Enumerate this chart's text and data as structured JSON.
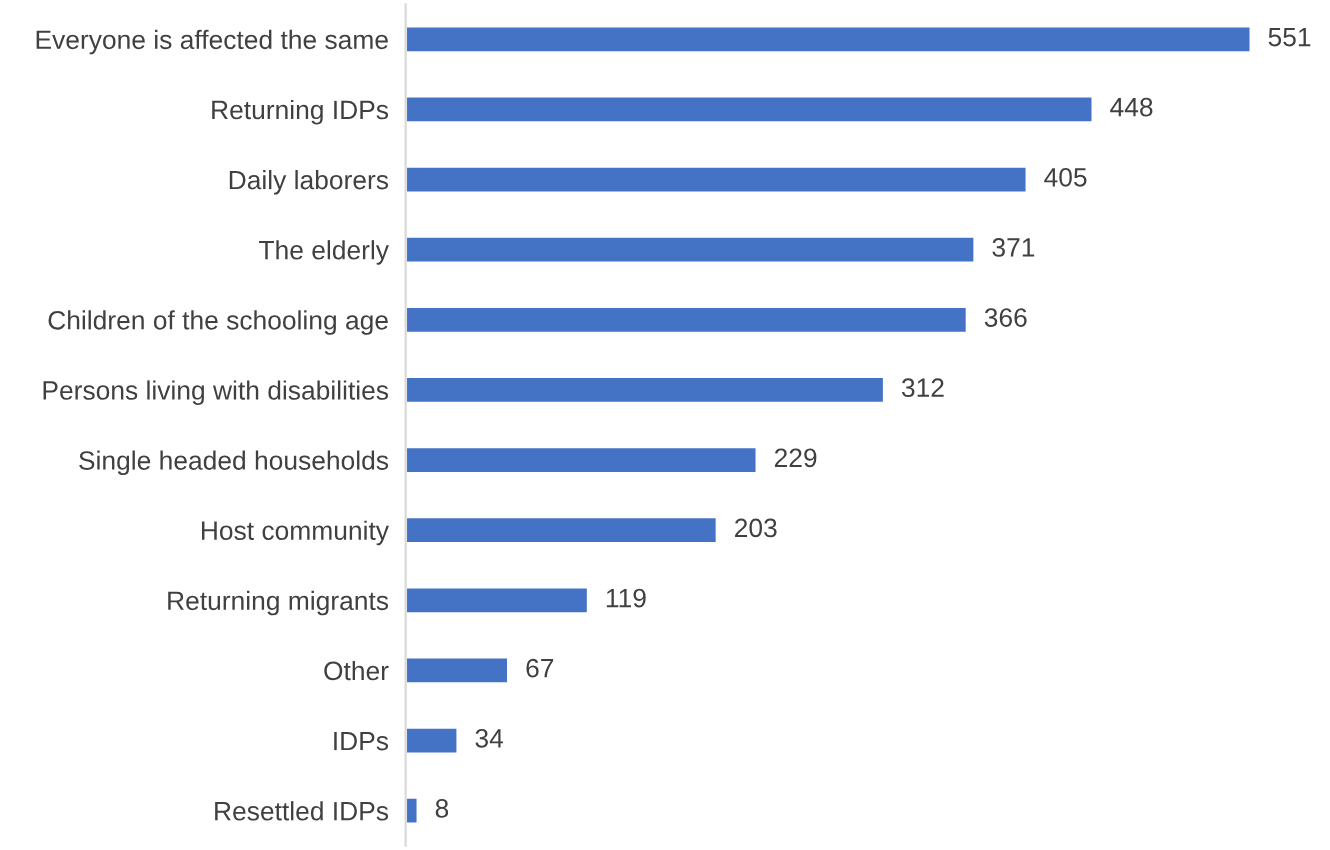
{
  "chart_data": {
    "type": "bar",
    "orientation": "horizontal",
    "categories": [
      "Everyone is affected the same",
      "Returning IDPs",
      "Daily laborers",
      "The elderly",
      "Children of the schooling age",
      "Persons living with disabilities",
      "Single headed households",
      "Host community",
      "Returning migrants",
      "Other",
      "IDPs",
      "Resettled IDPs"
    ],
    "values": [
      551,
      448,
      405,
      371,
      366,
      312,
      229,
      203,
      119,
      67,
      34,
      8
    ],
    "color": "#4472c4",
    "data_labels": true,
    "tick_labels": "y",
    "grid": false,
    "legend": false
  }
}
